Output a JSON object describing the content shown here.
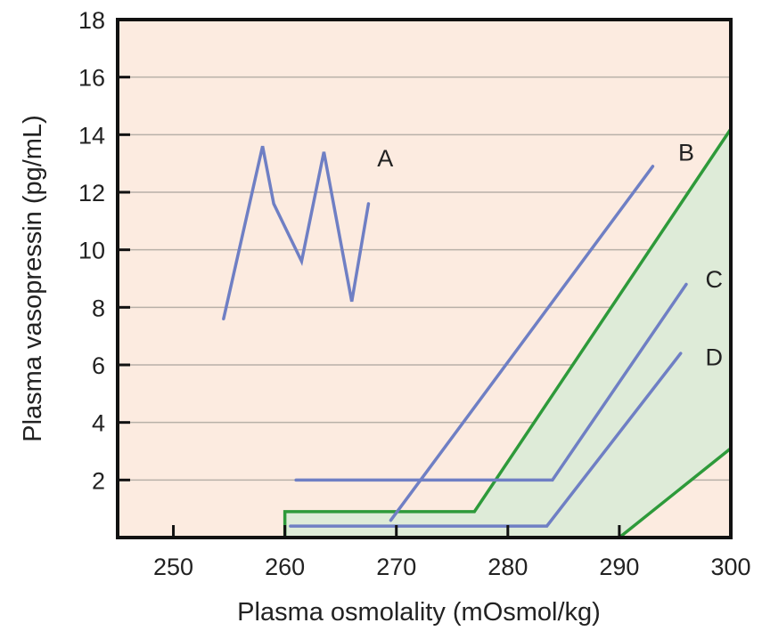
{
  "chart_data": {
    "type": "line",
    "xlabel": "Plasma osmolality (mOsmol/kg)",
    "ylabel": "Plasma vasopressin (pg/mL)",
    "xlim": [
      245,
      300
    ],
    "ylim": [
      0,
      18
    ],
    "xticks": [
      250,
      260,
      270,
      280,
      290,
      300
    ],
    "yticks": [
      2,
      4,
      6,
      8,
      10,
      12,
      14,
      16,
      18
    ],
    "grid": "horizontal",
    "colors": {
      "background": "#fcebe0",
      "grid": "#b8b0a8",
      "axis": "#111111",
      "series": "#6f7fc4",
      "normal_range_fill": "#deebd8",
      "normal_range_edge": "#2e9a3a"
    },
    "normal_range": {
      "polygon": [
        [
          260,
          0
        ],
        [
          260,
          0.9
        ],
        [
          277,
          0.9
        ],
        [
          300,
          14.2
        ],
        [
          300,
          3.1
        ],
        [
          290,
          0
        ]
      ]
    },
    "series": [
      {
        "name": "A",
        "points": [
          [
            254.5,
            7.6
          ],
          [
            258,
            13.6
          ],
          [
            259,
            11.6
          ],
          [
            261.5,
            9.6
          ],
          [
            263.5,
            13.4
          ],
          [
            266,
            8.2
          ],
          [
            267.5,
            11.6
          ]
        ]
      },
      {
        "name": "B",
        "points": [
          [
            269.5,
            0.6
          ],
          [
            293,
            12.9
          ]
        ]
      },
      {
        "name": "C",
        "points": [
          [
            261,
            2.0
          ],
          [
            284,
            2.0
          ],
          [
            296,
            8.8
          ]
        ]
      },
      {
        "name": "D",
        "points": [
          [
            260.5,
            0.4
          ],
          [
            283.5,
            0.4
          ],
          [
            295.5,
            6.4
          ]
        ]
      }
    ],
    "labels": [
      {
        "text": "A",
        "x": 269,
        "y": 13.2
      },
      {
        "text": "B",
        "x": 296,
        "y": 13.4
      },
      {
        "text": "C",
        "x": 298.5,
        "y": 9.0
      },
      {
        "text": "D",
        "x": 298.5,
        "y": 6.3
      }
    ]
  }
}
